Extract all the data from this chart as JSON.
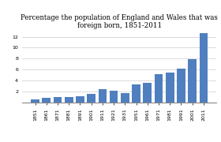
{
  "years": [
    "1851",
    "1861",
    "1871",
    "1881",
    "1891",
    "1901",
    "1911",
    "1921",
    "1931",
    "1951",
    "1961",
    "1971",
    "1981",
    "1991",
    "2001",
    "2011"
  ],
  "values": [
    0.5,
    0.8,
    0.9,
    1.0,
    1.1,
    1.5,
    2.4,
    2.05,
    1.7,
    3.3,
    3.6,
    5.2,
    5.4,
    6.2,
    7.9,
    12.7
  ],
  "bar_color": "#4f7fbf",
  "title_line1": "Percentage the population of England and Wales that was",
  "title_line2": "foreign born, 1851-2011",
  "ylim": [
    0,
    13
  ],
  "yticks": [
    2,
    4,
    6,
    8,
    10,
    12
  ],
  "title_fontsize": 6.2,
  "tick_fontsize": 4.5,
  "background_color": "#ffffff",
  "grid_color": "#cccccc"
}
